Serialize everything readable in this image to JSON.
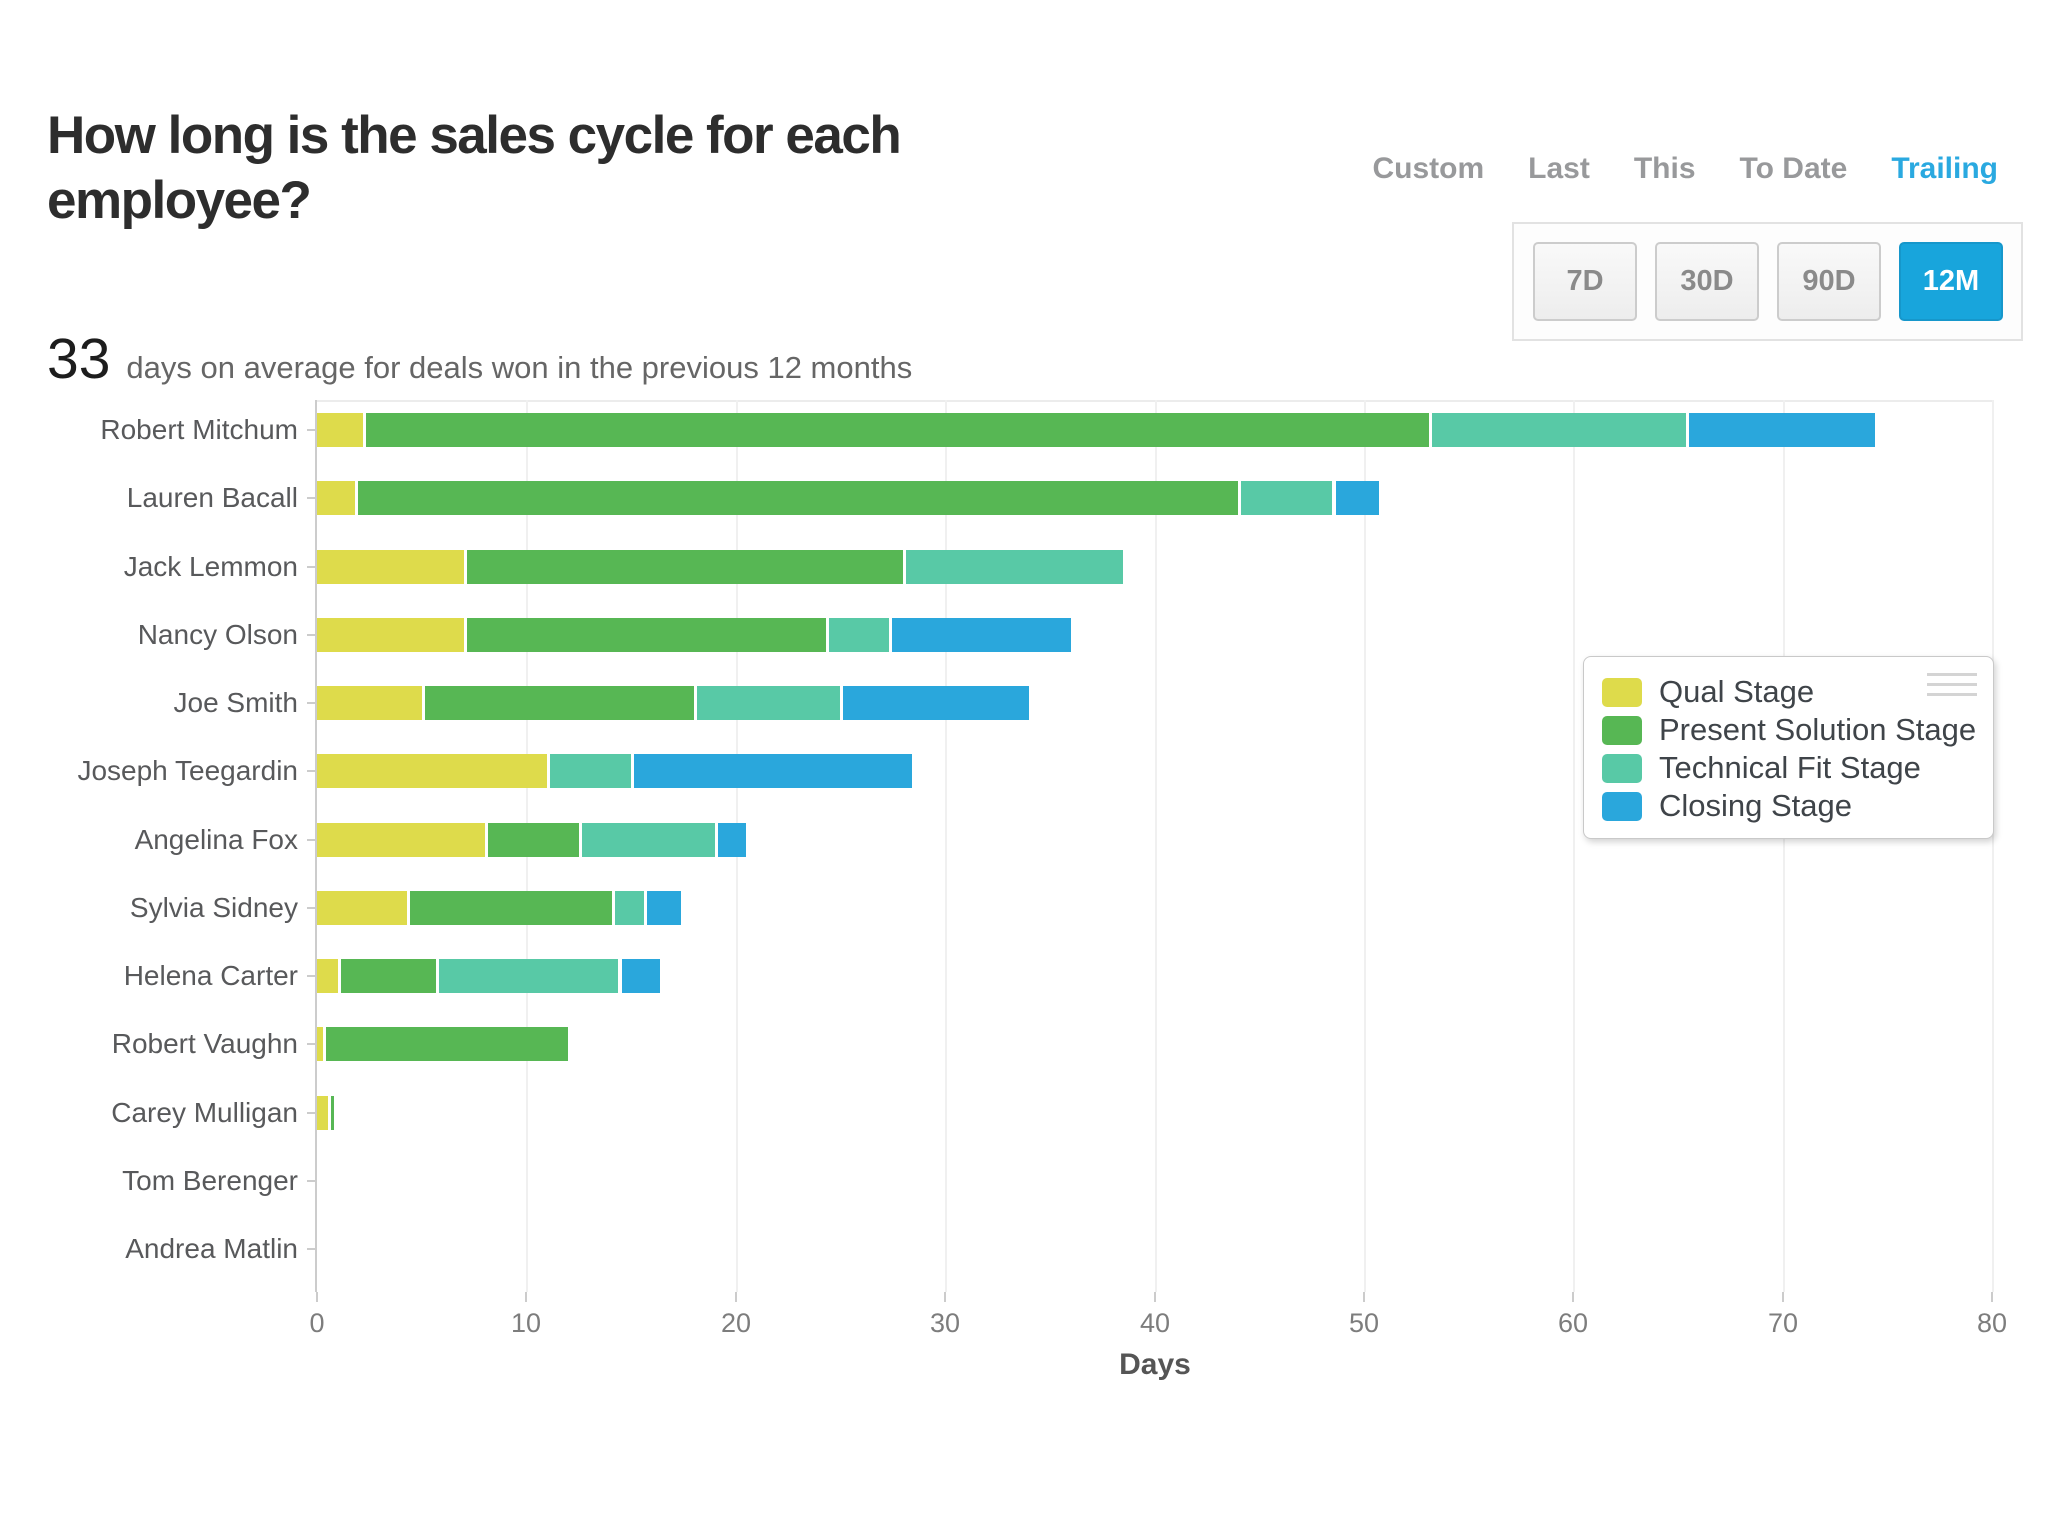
{
  "header": {
    "title": "How long is the sales cycle for each employee?",
    "metric_value": "33",
    "metric_caption": "days on average for deals won in the previous 12 months"
  },
  "controls": {
    "tabs": [
      {
        "label": "Custom",
        "active": false
      },
      {
        "label": "Last",
        "active": false
      },
      {
        "label": "This",
        "active": false
      },
      {
        "label": "To Date",
        "active": false
      },
      {
        "label": "Trailing",
        "active": true
      }
    ],
    "range_buttons": [
      {
        "label": "7D",
        "active": false
      },
      {
        "label": "30D",
        "active": false
      },
      {
        "label": "90D",
        "active": false
      },
      {
        "label": "12M",
        "active": true
      }
    ],
    "accent_blue": "#2aa9e0",
    "active_button_bg": "#18a5dc"
  },
  "chart_data": {
    "type": "bar",
    "orientation": "horizontal",
    "stacked": true,
    "title": "How long is the sales cycle for each employee?",
    "xlabel": "Days",
    "xlim": [
      0,
      80
    ],
    "x_ticks": [
      0,
      10,
      20,
      30,
      40,
      50,
      60,
      70,
      80
    ],
    "grid": "vertical",
    "legend_position": "right-overlay",
    "categories": [
      "Robert Mitchum",
      "Lauren Bacall",
      "Jack Lemmon",
      "Nancy Olson",
      "Joe Smith",
      "Joseph Teegardin",
      "Angelina Fox",
      "Sylvia Sidney",
      "Helena Carter",
      "Robert Vaughn",
      "Carey Mulligan",
      "Tom Berenger",
      "Andrea Matlin"
    ],
    "series": [
      {
        "name": "Qual Stage",
        "color": "#dedb4b",
        "values": [
          2.2,
          1.8,
          7,
          7,
          5,
          11,
          8,
          4.3,
          1,
          0.3,
          0.5,
          0,
          0
        ]
      },
      {
        "name": "Present Solution Stage",
        "color": "#57b754",
        "values": [
          50.9,
          42.2,
          21,
          17.3,
          13,
          0,
          4.5,
          9.8,
          4.7,
          11.7,
          0.3,
          0,
          0
        ]
      },
      {
        "name": "Technical Fit Stage",
        "color": "#58c9a6",
        "values": [
          12.3,
          4.5,
          10.5,
          3,
          7,
          4,
          6.5,
          1.5,
          8.7,
          0,
          0,
          0,
          0
        ]
      },
      {
        "name": "Closing Stage",
        "color": "#2aa7dc",
        "values": [
          9,
          2.2,
          0,
          8.7,
          9,
          13.4,
          1.5,
          1.8,
          2,
          0,
          0,
          0,
          0
        ]
      }
    ],
    "totals": [
      74.4,
      50.7,
      38.5,
      36,
      34,
      28.4,
      20.5,
      17.4,
      16.4,
      12,
      0.8,
      0,
      0
    ]
  }
}
